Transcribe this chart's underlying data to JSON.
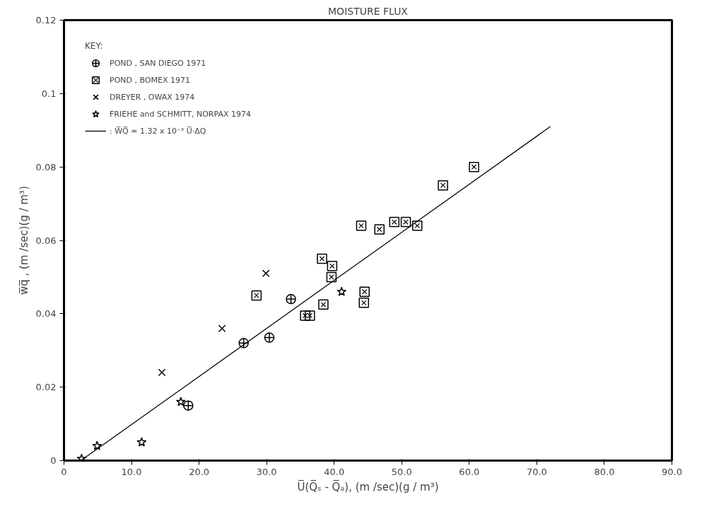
{
  "chart_data": {
    "type": "scatter",
    "title": "MOISTURE FLUX",
    "xlabel": "U̅(Q̅ₛ - Q̅ₐ), (m /sec)(g / m³)",
    "ylabel": "w̅q̅ , (m /sec)(g / m³)",
    "legend_title": "KEY:",
    "legend": "top left",
    "grid": false,
    "xlim": [
      0,
      90
    ],
    "ylim": [
      0,
      0.12
    ],
    "xticks": [
      0,
      {
        "value": 10,
        "label": "10.0"
      },
      {
        "value": 20,
        "label": "20.0"
      },
      {
        "value": 30,
        "label": "30.0"
      },
      {
        "value": 40,
        "label": "40.0"
      },
      {
        "value": 50,
        "label": "50.0"
      },
      {
        "value": 60,
        "label": "60.0"
      },
      {
        "value": 70,
        "label": "70.0"
      },
      {
        "value": 80,
        "label": "80.0"
      },
      {
        "value": 90,
        "label": "90.0"
      }
    ],
    "yticks": [
      0,
      0.02,
      0.04,
      0.06,
      0.08,
      0.1,
      0.12
    ],
    "series": [
      {
        "name": "POND , SAN DIEGO 1971",
        "color": "#000000",
        "marker": "circle",
        "x": [
          18.4,
          26.6,
          30.4,
          33.6
        ],
        "values": [
          0.015,
          0.032,
          0.0335,
          0.044
        ]
      },
      {
        "name": "POND , BOMEX 1971",
        "color": "#000000",
        "marker": "square",
        "x": [
          28.5,
          35.7,
          36.4,
          38.2,
          39.7,
          39.6,
          38.4,
          44.5,
          44.4,
          44.0,
          46.7,
          48.9,
          50.6,
          52.3,
          56.1,
          60.7
        ],
        "values": [
          0.045,
          0.0395,
          0.0395,
          0.055,
          0.053,
          0.05,
          0.0425,
          0.046,
          0.043,
          0.064,
          0.063,
          0.065,
          0.065,
          0.064,
          0.075,
          0.08
        ]
      },
      {
        "name": "DREYER , OWAX 1974",
        "color": "#000000",
        "marker": "cross",
        "x": [
          14.5,
          23.4,
          29.9
        ],
        "values": [
          0.024,
          0.036,
          0.051
        ]
      },
      {
        "name": "FRIEHE and SCHMITT, NORPAX 1974",
        "color": "#000000",
        "marker": "star",
        "x": [
          2.6,
          4.9,
          11.5,
          17.3,
          41.1
        ],
        "values": [
          0.0005,
          0.004,
          0.005,
          0.016,
          0.046
        ]
      },
      {
        "name": ": W̅Q̅ = 1.32 x 10⁻³ U̅·ΔQ",
        "type": "line",
        "color": "#000000",
        "line_style": "solid",
        "x": [
          2.5,
          72
        ],
        "values": [
          0,
          0.091
        ]
      }
    ]
  }
}
